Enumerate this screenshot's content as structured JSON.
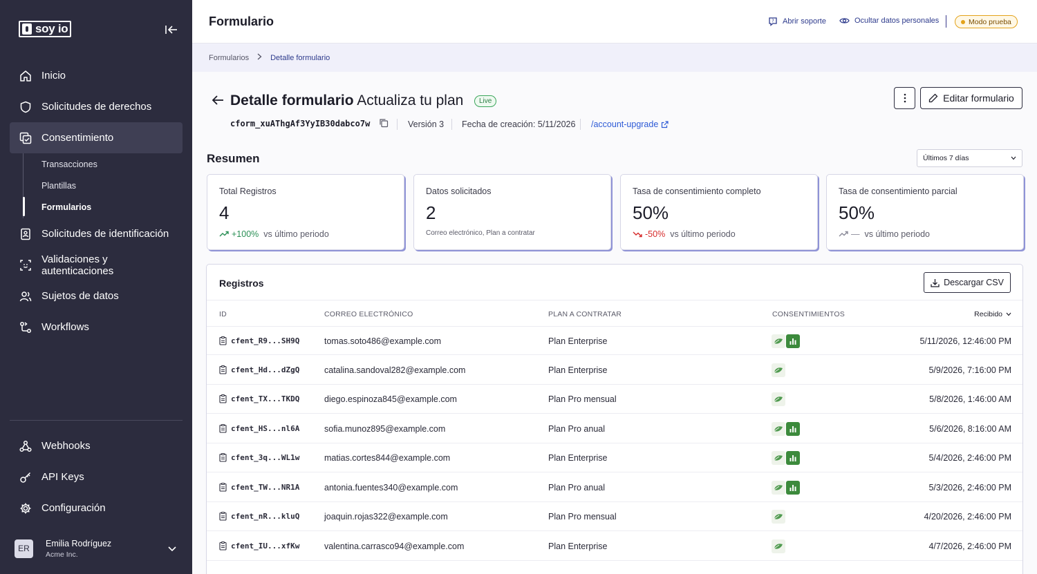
{
  "sidebar": {
    "logo_text": "soy io",
    "nav": [
      {
        "label": "Inicio",
        "icon": "home-icon"
      },
      {
        "label": "Solicitudes de derechos",
        "icon": "shield-icon"
      },
      {
        "label": "Consentimiento",
        "icon": "consent-icon",
        "active": true
      },
      {
        "label": "Solicitudes de identificación",
        "icon": "id-card-icon"
      },
      {
        "label": "Validaciones y autenticaciones",
        "icon": "face-scan-icon"
      },
      {
        "label": "Sujetos de datos",
        "icon": "users-icon"
      },
      {
        "label": "Workflows",
        "icon": "workflow-icon"
      }
    ],
    "subnav": [
      {
        "label": "Transacciones"
      },
      {
        "label": "Plantillas"
      },
      {
        "label": "Formularios",
        "active": true
      }
    ],
    "bottom_nav": [
      {
        "label": "Webhooks",
        "icon": "webhook-icon"
      },
      {
        "label": "API Keys",
        "icon": "key-icon"
      },
      {
        "label": "Configuración",
        "icon": "gear-icon"
      }
    ],
    "user": {
      "initials": "ER",
      "name": "Emilia Rodríguez",
      "org": "Acme Inc."
    }
  },
  "topbar": {
    "title": "Formulario",
    "support_label": "Abrir soporte",
    "hide_data_label": "Ocultar datos personales",
    "test_mode_label": "Modo prueba"
  },
  "breadcrumb": {
    "parent": "Formularios",
    "current": "Detalle formulario"
  },
  "detail": {
    "title_bold": "Detalle formulario",
    "title_name": "Actualiza tu plan",
    "status": "Live",
    "form_id": "cform_xuAThgAf3YyIB30dabco7w",
    "version": "Versión 3",
    "created": "Fecha de creación: 5/11/2026",
    "slug": "/account-upgrade",
    "edit_label": "Editar formulario"
  },
  "summary": {
    "title": "Resumen",
    "range": "Últimos 7 días",
    "cards": [
      {
        "label": "Total Registros",
        "value": "4",
        "delta": "+100%",
        "trend": "up",
        "suffix": "vs último periodo"
      },
      {
        "label": "Datos solicitados",
        "value": "2",
        "sub": "Correo electrónico, Plan a contratar"
      },
      {
        "label": "Tasa de consentimiento completo",
        "value": "50%",
        "delta": "-50%",
        "trend": "down",
        "suffix": "vs último periodo"
      },
      {
        "label": "Tasa de consentimiento parcial",
        "value": "50%",
        "delta": "—",
        "trend": "flat",
        "suffix": "vs último periodo"
      }
    ]
  },
  "records": {
    "title": "Registros",
    "download_label": "Descargar CSV",
    "columns": {
      "id": "ID",
      "email": "CORREO ELECTRÓNICO",
      "plan": "PLAN A CONTRATAR",
      "consents": "CONSENTIMIENTOS",
      "received": "Recibido"
    },
    "rows": [
      {
        "id": "cfent_R9...SH9Q",
        "email": "tomas.soto486@example.com",
        "plan": "Plan Enterprise",
        "consents": 2,
        "date": "5/11/2026, 12:46:00 PM"
      },
      {
        "id": "cfent_Hd...dZgQ",
        "email": "catalina.sandoval282@example.com",
        "plan": "Plan Enterprise",
        "consents": 1,
        "date": "5/9/2026, 7:16:00 PM"
      },
      {
        "id": "cfent_TX...TKDQ",
        "email": "diego.espinoza845@example.com",
        "plan": "Plan Pro mensual",
        "consents": 1,
        "date": "5/8/2026, 1:46:00 AM"
      },
      {
        "id": "cfent_HS...nl6A",
        "email": "sofia.munoz895@example.com",
        "plan": "Plan Pro anual",
        "consents": 2,
        "date": "5/6/2026, 8:16:00 AM"
      },
      {
        "id": "cfent_3q...WL1w",
        "email": "matias.cortes844@example.com",
        "plan": "Plan Enterprise",
        "consents": 2,
        "date": "5/4/2026, 2:46:00 PM"
      },
      {
        "id": "cfent_TW...NR1A",
        "email": "antonia.fuentes340@example.com",
        "plan": "Plan Pro anual",
        "consents": 2,
        "date": "5/3/2026, 2:46:00 PM"
      },
      {
        "id": "cfent_nR...kluQ",
        "email": "joaquin.rojas322@example.com",
        "plan": "Plan Pro mensual",
        "consents": 1,
        "date": "4/20/2026, 2:46:00 PM"
      },
      {
        "id": "cfent_IU...xfKw",
        "email": "valentina.carrasco94@example.com",
        "plan": "Plan Enterprise",
        "consents": 1,
        "date": "4/7/2026, 2:46:00 PM"
      }
    ]
  }
}
